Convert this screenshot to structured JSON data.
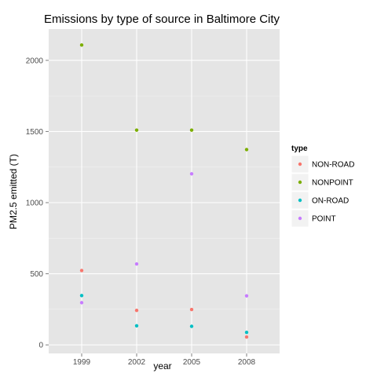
{
  "chart_data": {
    "type": "scatter",
    "title": "Emissions by type of source in Baltimore City",
    "xlabel": "year",
    "ylabel": "PM2.5 emitted (T)",
    "x_categories": [
      "1999",
      "2002",
      "2005",
      "2008"
    ],
    "y_ticks": [
      0,
      500,
      1000,
      1500,
      2000
    ],
    "ylim": [
      -60,
      2220
    ],
    "grid": true,
    "legend": {
      "title": "type",
      "placement": "right"
    },
    "series": [
      {
        "name": "NON-ROAD",
        "color": "#F8766D",
        "values": [
          522.94,
          242.63,
          248.93,
          55.82
        ]
      },
      {
        "name": "NONPOINT",
        "color": "#7CAE00",
        "values": [
          2107.63,
          1509.5,
          1509.5,
          1373.21
        ]
      },
      {
        "name": "ON-ROAD",
        "color": "#00BFC4",
        "values": [
          346.82,
          134.31,
          130.43,
          88.28
        ]
      },
      {
        "name": "POINT",
        "color": "#C77CFF",
        "values": [
          296.8,
          569.26,
          1202.49,
          344.98
        ]
      }
    ]
  }
}
